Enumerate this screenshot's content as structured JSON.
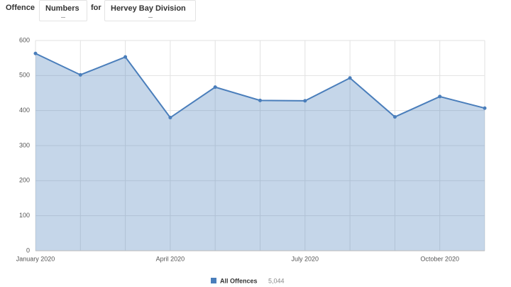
{
  "controls": {
    "offence_label": "Offence",
    "measure": "Numbers",
    "for_label": "for",
    "division": "Hervey Bay Division"
  },
  "chart_data": {
    "type": "area",
    "categories": [
      "January 2020",
      null,
      null,
      "April 2020",
      null,
      null,
      "July 2020",
      null,
      null,
      "October 2020",
      null
    ],
    "series": [
      {
        "name": "All Offences",
        "color": "#4a7ebb",
        "values": [
          563,
          502,
          553,
          380,
          467,
          429,
          428,
          493,
          382,
          440,
          407
        ],
        "total_label": "5,044"
      }
    ],
    "ylim": [
      0,
      600
    ],
    "yticks": [
      0,
      100,
      200,
      300,
      400,
      500,
      600
    ],
    "grid": true
  }
}
